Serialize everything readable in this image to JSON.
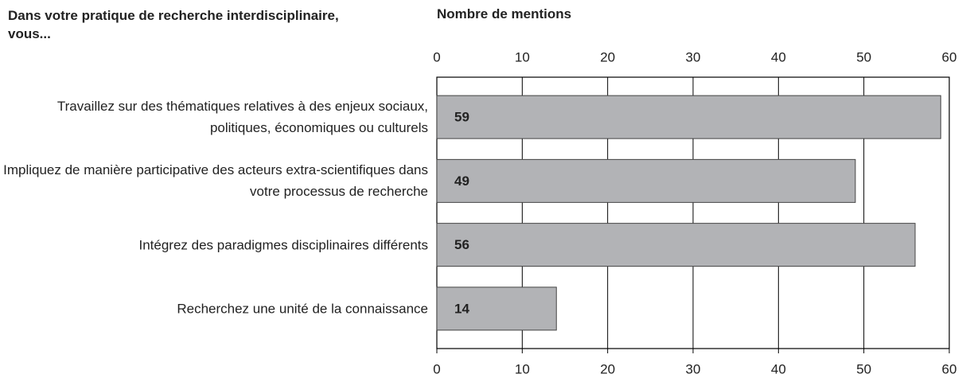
{
  "chart_data": {
    "type": "bar",
    "orientation": "horizontal",
    "title": "Dans votre pratique de recherche interdisciplinaire, vous...",
    "xlabel": "Nombre de mentions",
    "categories": [
      "Travaillez sur des thématiques relatives à des enjeux sociaux, politiques, économiques ou culturels",
      "Impliquez de manière participative des acteurs extra-scientifiques dans votre processus de recherche",
      "Intégrez des paradigmes disciplinaires différents",
      "Recherchez une unité de la connaissance"
    ],
    "values": [
      59,
      49,
      56,
      14
    ],
    "color": "#b2b3b6",
    "xlim": [
      0,
      60
    ],
    "xticks": [
      0,
      10,
      20,
      30,
      40,
      50,
      60
    ],
    "grid": true
  }
}
